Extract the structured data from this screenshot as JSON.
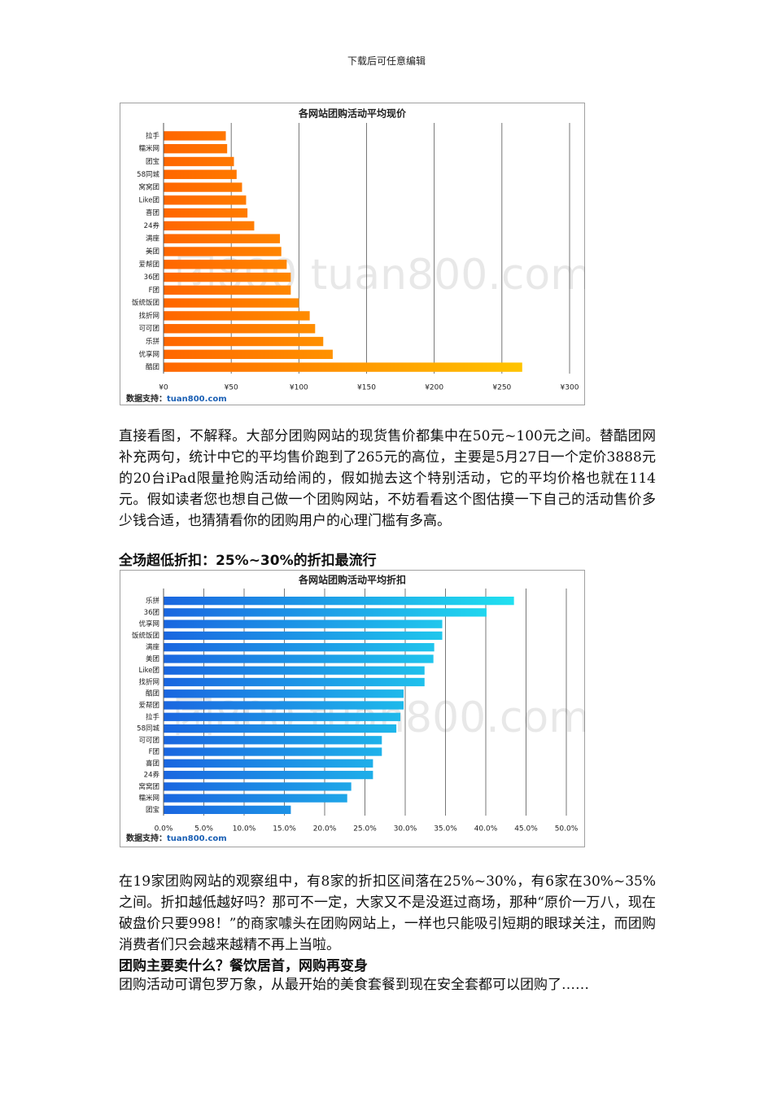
{
  "header": "下载后可任意编辑",
  "chart_data": [
    {
      "type": "barh",
      "title": "各网站团购活动平均现价",
      "categories": [
        "拉手",
        "糯米网",
        "团宝",
        "58同城",
        "窝窝团",
        "Like团",
        "喜团",
        "24券",
        "满座",
        "美团",
        "爱帮团",
        "36团",
        "F团",
        "饭统饭团",
        "找折网",
        "可可团",
        "乐拼",
        "优享网",
        "酷团"
      ],
      "values": [
        46,
        47,
        52,
        54,
        58,
        61,
        62,
        67,
        86,
        87,
        91,
        94,
        94,
        100,
        108,
        112,
        118,
        125,
        265
      ],
      "color": "#ff6600",
      "color_end": "#ffd000",
      "xlim": [
        0,
        300
      ],
      "xticks": [
        {
          "value": 0,
          "label": "¥0"
        },
        {
          "value": 50,
          "label": "¥50"
        },
        {
          "value": 100,
          "label": "¥100"
        },
        {
          "value": 150,
          "label": "¥150"
        },
        {
          "value": 200,
          "label": "¥200"
        },
        {
          "value": 250,
          "label": "¥250"
        },
        {
          "value": 300,
          "label": "¥300"
        }
      ],
      "grid": true,
      "credit_label": "数据支持：",
      "credit_site": "tuan800.com",
      "watermark": "团800 tuan800.com"
    },
    {
      "type": "barh",
      "title": "各网站团购活动平均折扣",
      "categories": [
        "乐拼",
        "36团",
        "优享网",
        "饭统饭团",
        "满座",
        "美团",
        "Like团",
        "找折网",
        "酷团",
        "爱帮团",
        "拉手",
        "58同城",
        "可可团",
        "F团",
        "喜团",
        "24券",
        "窝窝团",
        "糯米网",
        "团宝"
      ],
      "values": [
        43.5,
        40.1,
        34.6,
        34.6,
        33.6,
        33.5,
        32.4,
        32.4,
        29.8,
        29.8,
        29.4,
        28.9,
        27.1,
        27.1,
        26.0,
        26.0,
        23.3,
        22.8,
        15.8
      ],
      "color": "#1a66e0",
      "color_end": "#22f2f2",
      "xlim": [
        0,
        50
      ],
      "xticks": [
        {
          "value": 0,
          "label": "0.0%"
        },
        {
          "value": 5,
          "label": "5.0%"
        },
        {
          "value": 10,
          "label": "10.0%"
        },
        {
          "value": 15,
          "label": "15.0%"
        },
        {
          "value": 20,
          "label": "20.0%"
        },
        {
          "value": 25,
          "label": "25.0%"
        },
        {
          "value": 30,
          "label": "30.0%"
        },
        {
          "value": 35,
          "label": "35.0%"
        },
        {
          "value": 40,
          "label": "40.0%"
        },
        {
          "value": 45,
          "label": "45.0%"
        },
        {
          "value": 50,
          "label": "50.0%"
        }
      ],
      "grid": true,
      "credit_label": "数据支持：",
      "credit_site": "tuan800.com",
      "watermark": "团800 tuan800.com"
    }
  ],
  "paragraphs": [
    "直接看图，不解释。大部分团购网站的现货售价都集中在50元~100元之间。替酷团网补充两句，统计中它的平均售价跑到了265元的高位，主要是5月27日一个定价3888元的20台iPad限量抢购活动给闹的，假如抛去这个特别活动，它的平均价格也就在114元。假如读者您也想自己做一个团购网站，不妨看看这个图估摸一下自己的活动售价多少钱合适，也猜猜看你的团购用户的心理门槛有多高。",
    "在19家团购网站的观察组中，有8家的折扣区间落在25%~30%，有6家在30%~35%之间。折扣越低越好吗？那可不一定，大家又不是没逛过商场，那种“原价一万八，现在破盘价只要998！”的商家噱头在团购网站上，一样也只能吸引短期的眼球关注，而团购消费者们只会越来越精不再上当啦。",
    "团购活动可谓包罗万象，从最开始的美食套餐到现在安全套都可以团购了……"
  ],
  "headings": [
    "全场超低折扣：25%~30%的折扣最流行",
    "团购主要卖什么？餐饮居首，网购再变身"
  ]
}
